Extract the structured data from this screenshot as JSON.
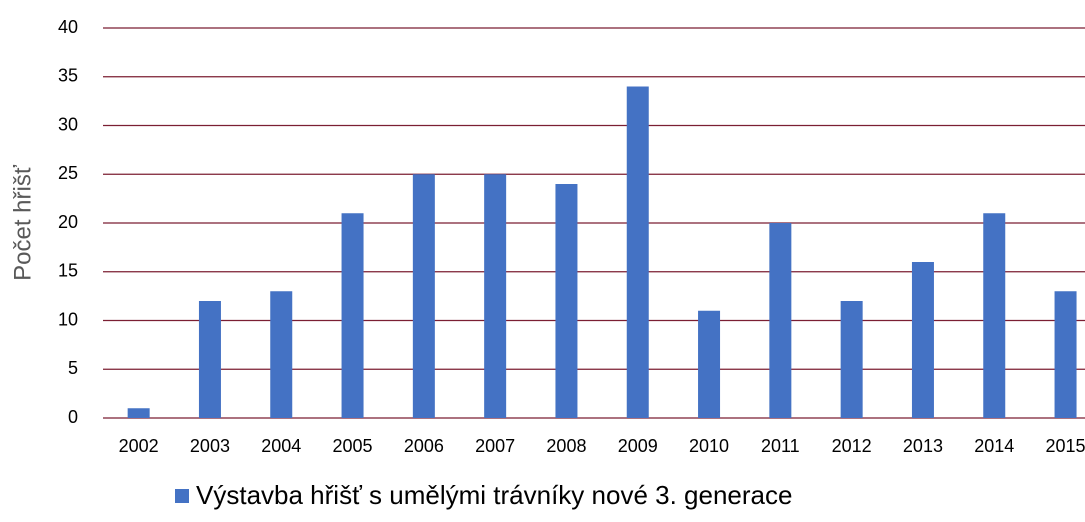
{
  "chart_data": {
    "type": "bar",
    "y_label": "Počet hřišť",
    "categories": [
      "2002",
      "2003",
      "2004",
      "2005",
      "2006",
      "2007",
      "2008",
      "2009",
      "2010",
      "2011",
      "2012",
      "2013",
      "2014",
      "2015"
    ],
    "series": [
      {
        "name": "Výstavba hřišť s umělými trávníky nové 3. generace",
        "color": "#4472c4",
        "values": [
          1,
          12,
          13,
          21,
          25,
          25,
          24,
          34,
          11,
          20,
          12,
          16,
          21,
          13
        ]
      }
    ],
    "ylim": [
      0,
      40
    ],
    "yticks": [
      0,
      5,
      10,
      15,
      20,
      25,
      30,
      35,
      40
    ],
    "grid": true,
    "grid_color": "#7b1f33",
    "legend": "bottom"
  }
}
